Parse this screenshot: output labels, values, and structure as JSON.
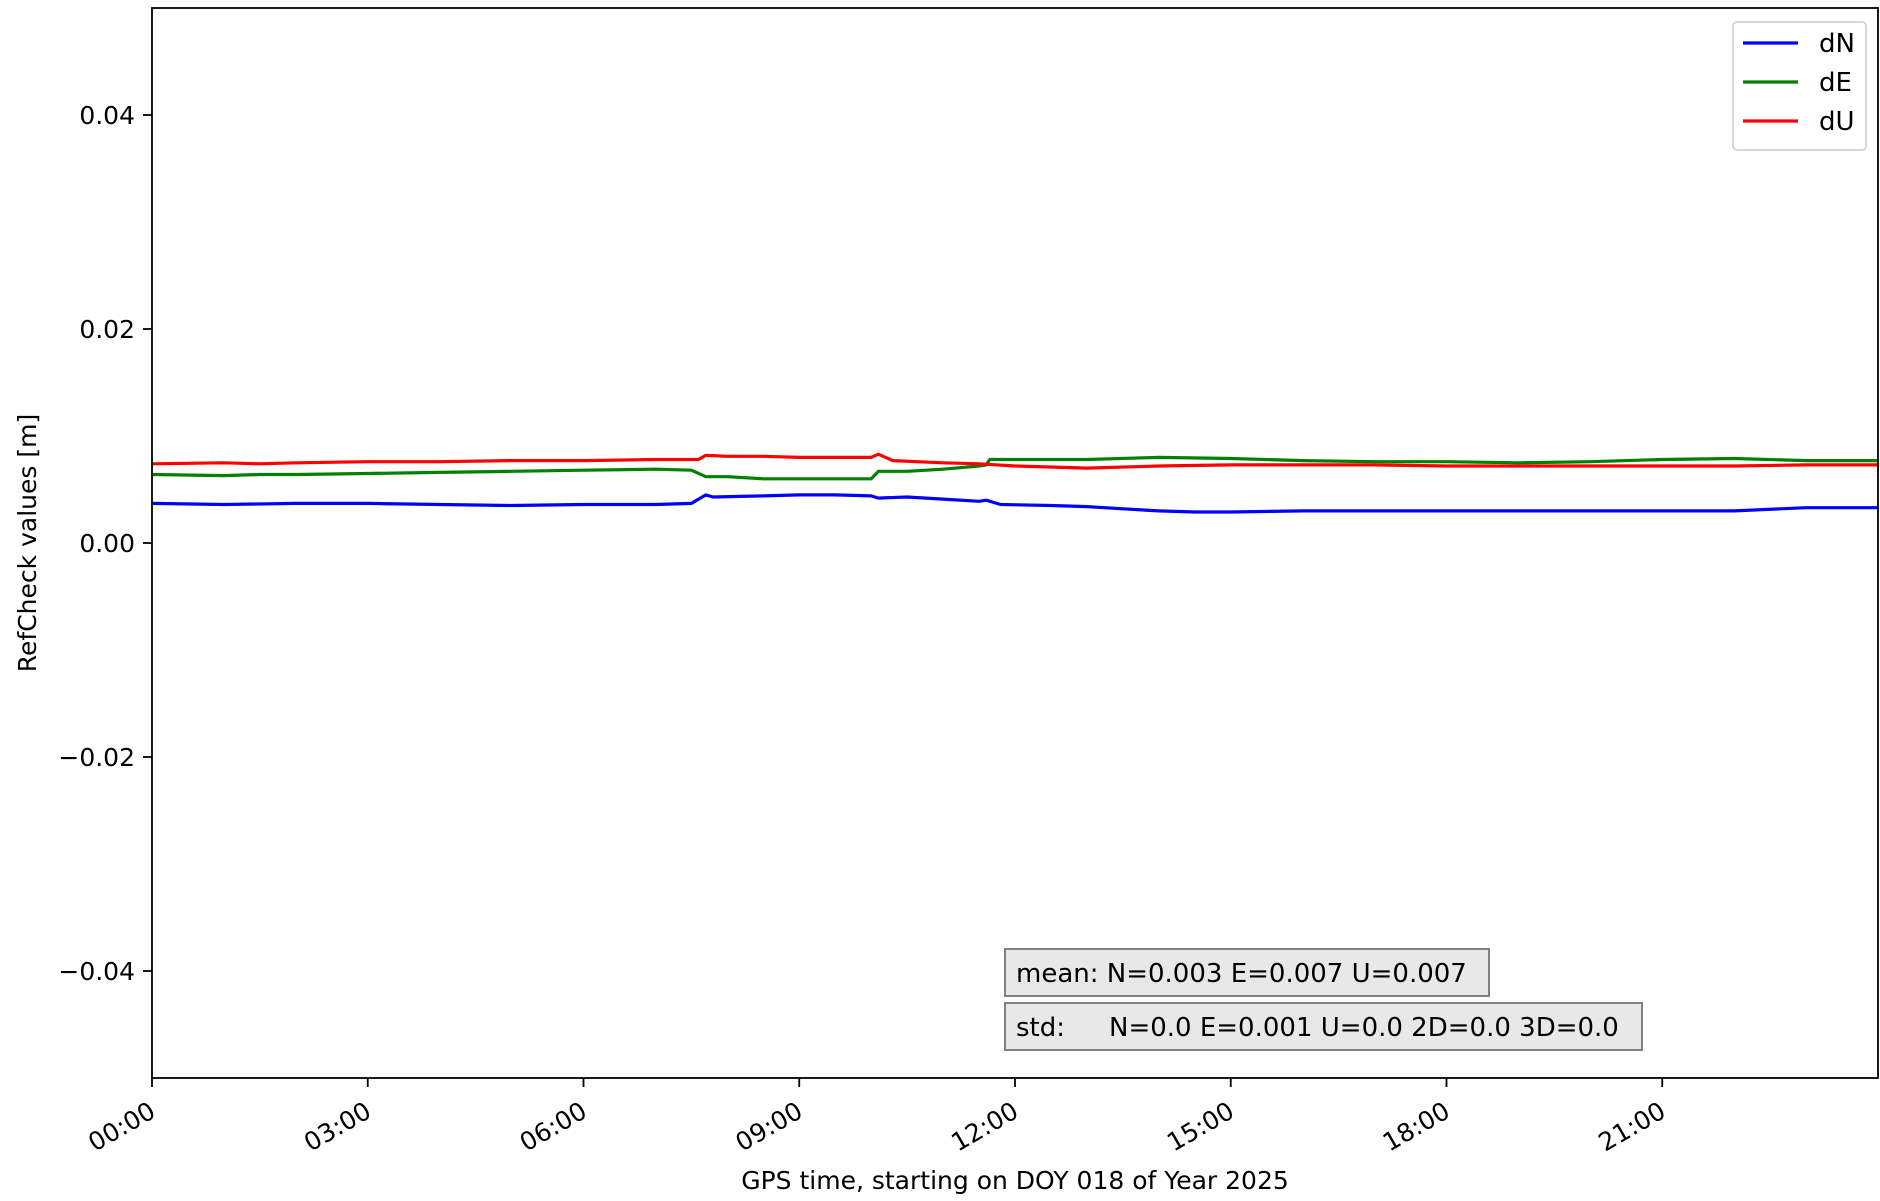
{
  "chart_data": {
    "type": "line",
    "xlabel": "GPS time, starting on DOY 018 of Year 2025",
    "ylabel": "RefCheck values [m]",
    "xlim": [
      0,
      24
    ],
    "ylim": [
      -0.05,
      0.05
    ],
    "x_ticks": [
      {
        "value": 0,
        "label": "00:00"
      },
      {
        "value": 3,
        "label": "03:00"
      },
      {
        "value": 6,
        "label": "06:00"
      },
      {
        "value": 9,
        "label": "09:00"
      },
      {
        "value": 12,
        "label": "12:00"
      },
      {
        "value": 15,
        "label": "15:00"
      },
      {
        "value": 18,
        "label": "18:00"
      },
      {
        "value": 21,
        "label": "21:00"
      }
    ],
    "y_ticks": [
      {
        "value": 0.04,
        "label": "0.04"
      },
      {
        "value": 0.02,
        "label": "0.02"
      },
      {
        "value": 0.0,
        "label": "0.00"
      },
      {
        "value": -0.02,
        "label": "−0.02"
      },
      {
        "value": -0.04,
        "label": "−0.04"
      }
    ],
    "legend_position": "top-right",
    "grid": false,
    "series": [
      {
        "name": "dN",
        "color": "#0000ff",
        "x": [
          0,
          1,
          2,
          3,
          4,
          5,
          6,
          7,
          7.5,
          7.7,
          7.8,
          8.5,
          9,
          9.5,
          10,
          10.1,
          10.5,
          11,
          11.5,
          11.6,
          11.8,
          12.5,
          13,
          13.5,
          14,
          14.5,
          15,
          16,
          17,
          18,
          19,
          20,
          21,
          22,
          23,
          24
        ],
        "y": [
          0.0037,
          0.0036,
          0.0037,
          0.0037,
          0.0036,
          0.0035,
          0.0036,
          0.0036,
          0.0037,
          0.0045,
          0.0043,
          0.0044,
          0.0045,
          0.0045,
          0.0044,
          0.0042,
          0.0043,
          0.0041,
          0.0039,
          0.004,
          0.0036,
          0.0035,
          0.0034,
          0.0032,
          0.003,
          0.0029,
          0.0029,
          0.003,
          0.003,
          0.003,
          0.003,
          0.003,
          0.003,
          0.003,
          0.0033,
          0.0033
        ]
      },
      {
        "name": "dE",
        "color": "#008000",
        "x": [
          0,
          1,
          1.5,
          2,
          3,
          4,
          5,
          6,
          7,
          7.5,
          7.7,
          8,
          8.5,
          9,
          10,
          10.1,
          10.5,
          11,
          11.5,
          11.6,
          11.65,
          12,
          13,
          14,
          15,
          16,
          17,
          18,
          19,
          20,
          21,
          22,
          23,
          24
        ],
        "y": [
          0.0064,
          0.0063,
          0.0064,
          0.0064,
          0.0065,
          0.0066,
          0.0067,
          0.0068,
          0.0069,
          0.0068,
          0.0062,
          0.0062,
          0.006,
          0.006,
          0.006,
          0.0067,
          0.0067,
          0.0069,
          0.0072,
          0.0073,
          0.0078,
          0.0078,
          0.0078,
          0.008,
          0.0079,
          0.0077,
          0.0076,
          0.0076,
          0.0075,
          0.0076,
          0.0078,
          0.0079,
          0.0077,
          0.0077
        ]
      },
      {
        "name": "dU",
        "color": "#ff0000",
        "x": [
          0,
          1,
          1.5,
          2,
          3,
          4,
          5,
          6,
          7,
          7.6,
          7.7,
          8,
          8.5,
          9,
          10,
          10.1,
          10.3,
          11,
          11.5,
          12,
          13,
          14,
          15,
          16,
          17,
          18,
          19,
          20,
          21,
          22,
          23,
          24
        ],
        "y": [
          0.0074,
          0.0075,
          0.0074,
          0.0075,
          0.0076,
          0.0076,
          0.0077,
          0.0077,
          0.0078,
          0.0078,
          0.0082,
          0.0081,
          0.0081,
          0.008,
          0.008,
          0.0083,
          0.0077,
          0.0075,
          0.0074,
          0.0072,
          0.007,
          0.0072,
          0.0073,
          0.0073,
          0.0073,
          0.0072,
          0.0072,
          0.0072,
          0.0072,
          0.0072,
          0.0073,
          0.0073
        ]
      }
    ],
    "annotations": {
      "mean": "mean: N=0.003 E=0.007 U=0.007",
      "std_prefix": "std:",
      "std_values": "N=0.0 E=0.001 U=0.0 2D=0.0 3D=0.0"
    }
  }
}
